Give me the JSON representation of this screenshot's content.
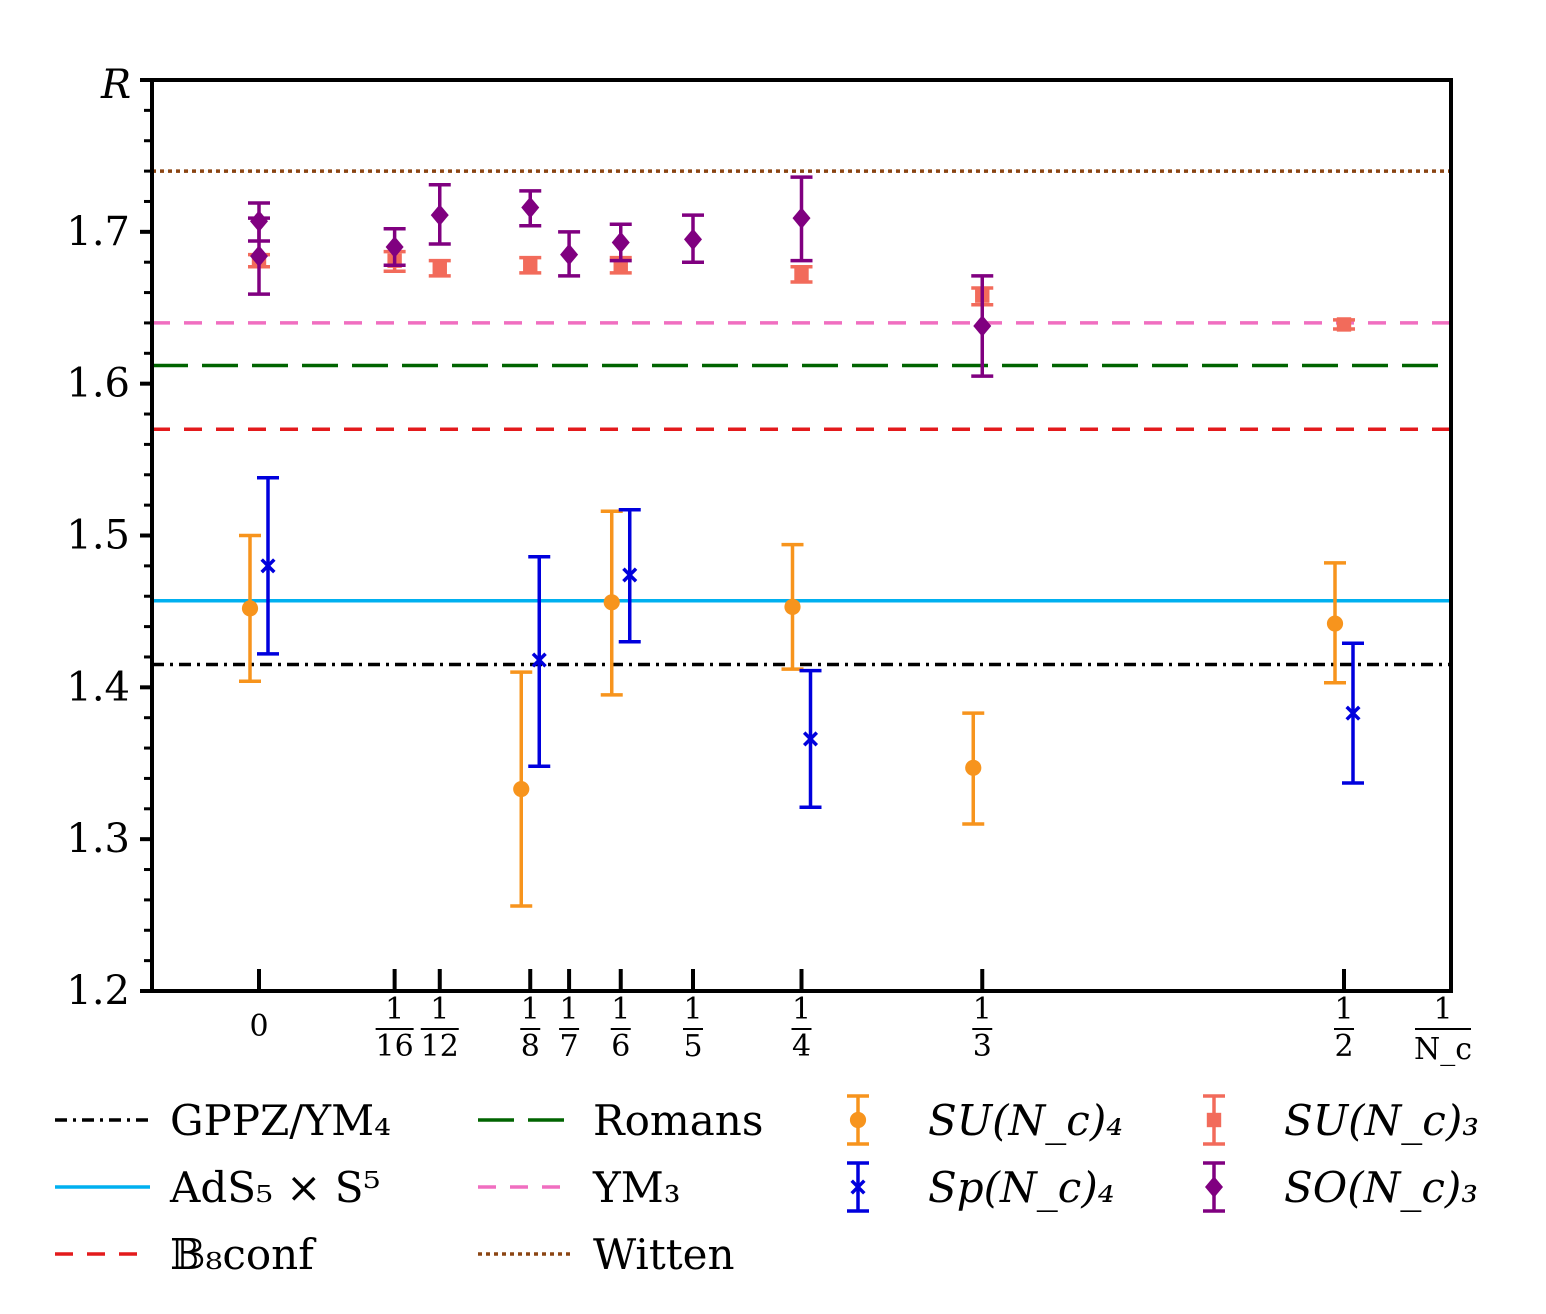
{
  "chart_data": {
    "type": "scatter",
    "ylabel": "R",
    "ylim": [
      1.2,
      1.8
    ],
    "yticks": [
      "1.2",
      "1.3",
      "1.4",
      "1.5",
      "1.6",
      "1.7"
    ],
    "xlabel": {
      "numerator": "1",
      "denominator": "N_c"
    },
    "xticks": [
      {
        "value": 0,
        "label": "0"
      },
      {
        "value": 0.0625,
        "num": "1",
        "den": "16"
      },
      {
        "value": 0.0833,
        "num": "1",
        "den": "12"
      },
      {
        "value": 0.125,
        "num": "1",
        "den": "8"
      },
      {
        "value": 0.1429,
        "num": "1",
        "den": "7"
      },
      {
        "value": 0.1667,
        "num": "1",
        "den": "6"
      },
      {
        "value": 0.2,
        "num": "1",
        "den": "5"
      },
      {
        "value": 0.25,
        "num": "1",
        "den": "4"
      },
      {
        "value": 0.3333,
        "num": "1",
        "den": "3"
      },
      {
        "value": 0.5,
        "num": "1",
        "den": "2"
      }
    ],
    "reference_lines": [
      {
        "name": "GPPZ/YM₄",
        "y": 1.415,
        "color": "#000000",
        "style": "dashdot"
      },
      {
        "name": "AdS₅ × S⁵",
        "y": 1.457,
        "color": "#00b0f0",
        "style": "solid"
      },
      {
        "name": "𝔹₈conf",
        "y": 1.57,
        "color": "#e31a1c",
        "style": "dashed"
      },
      {
        "name": "Romans",
        "y": 1.612,
        "color": "#006400",
        "style": "longdash"
      },
      {
        "name": "YM₃",
        "y": 1.64,
        "color": "#f06ec0",
        "style": "dashed"
      },
      {
        "name": "Witten",
        "y": 1.74,
        "color": "#8b4513",
        "style": "dotted"
      }
    ],
    "series": [
      {
        "name": "SU(N_c)₄",
        "marker": "circle",
        "color": "#f7941d",
        "points": [
          {
            "x": 0,
            "y": 1.452,
            "lo": 1.404,
            "hi": 1.5
          },
          {
            "x": 0.125,
            "y": 1.333,
            "lo": 1.256,
            "hi": 1.41
          },
          {
            "x": 0.1667,
            "y": 1.456,
            "lo": 1.395,
            "hi": 1.516
          },
          {
            "x": 0.25,
            "y": 1.453,
            "lo": 1.412,
            "hi": 1.494
          },
          {
            "x": 0.3333,
            "y": 1.347,
            "lo": 1.31,
            "hi": 1.383
          },
          {
            "x": 0.5,
            "y": 1.442,
            "lo": 1.403,
            "hi": 1.482
          }
        ]
      },
      {
        "name": "Sp(N_c)₄",
        "marker": "x",
        "color": "#0000dd",
        "points": [
          {
            "x": 0,
            "y": 1.48,
            "lo": 1.422,
            "hi": 1.538
          },
          {
            "x": 0.125,
            "y": 1.418,
            "lo": 1.348,
            "hi": 1.486
          },
          {
            "x": 0.1667,
            "y": 1.474,
            "lo": 1.43,
            "hi": 1.517
          },
          {
            "x": 0.25,
            "y": 1.366,
            "lo": 1.321,
            "hi": 1.411
          },
          {
            "x": 0.5,
            "y": 1.383,
            "lo": 1.337,
            "hi": 1.429
          }
        ]
      },
      {
        "name": "SU(N_c)₃",
        "marker": "square",
        "color": "#f26b5b",
        "points": [
          {
            "x": 0,
            "y": 1.681,
            "lo": 1.677,
            "hi": 1.685
          },
          {
            "x": 0.0625,
            "y": 1.681,
            "lo": 1.674,
            "hi": 1.687
          },
          {
            "x": 0.0833,
            "y": 1.676,
            "lo": 1.671,
            "hi": 1.681
          },
          {
            "x": 0.125,
            "y": 1.678,
            "lo": 1.673,
            "hi": 1.683
          },
          {
            "x": 0.1667,
            "y": 1.678,
            "lo": 1.673,
            "hi": 1.683
          },
          {
            "x": 0.25,
            "y": 1.672,
            "lo": 1.667,
            "hi": 1.677
          },
          {
            "x": 0.3333,
            "y": 1.658,
            "lo": 1.652,
            "hi": 1.663
          },
          {
            "x": 0.5,
            "y": 1.639,
            "lo": 1.636,
            "hi": 1.642
          }
        ]
      },
      {
        "name": "SO(N_c)₃",
        "marker": "diamond",
        "color": "#800080",
        "points": [
          {
            "x": 0,
            "y": 1.707,
            "lo": 1.694,
            "hi": 1.719
          },
          {
            "x": 0,
            "y": 1.684,
            "lo": 1.659,
            "hi": 1.709
          },
          {
            "x": 0.0625,
            "y": 1.69,
            "lo": 1.678,
            "hi": 1.702
          },
          {
            "x": 0.0833,
            "y": 1.711,
            "lo": 1.692,
            "hi": 1.731
          },
          {
            "x": 0.125,
            "y": 1.716,
            "lo": 1.704,
            "hi": 1.727
          },
          {
            "x": 0.1429,
            "y": 1.685,
            "lo": 1.671,
            "hi": 1.7
          },
          {
            "x": 0.1667,
            "y": 1.693,
            "lo": 1.681,
            "hi": 1.705
          },
          {
            "x": 0.2,
            "y": 1.695,
            "lo": 1.68,
            "hi": 1.711
          },
          {
            "x": 0.25,
            "y": 1.709,
            "lo": 1.681,
            "hi": 1.736
          },
          {
            "x": 0.3333,
            "y": 1.638,
            "lo": 1.605,
            "hi": 1.671
          }
        ]
      }
    ],
    "legend_placement": "bottom"
  }
}
